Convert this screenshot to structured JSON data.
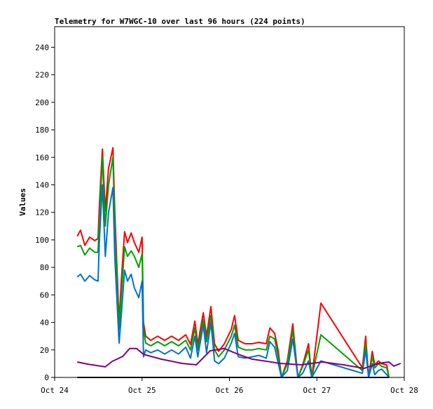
{
  "chart_data": {
    "type": "line",
    "title": "Telemetry for W7WGC-10 over last 96 hours (224 points)",
    "y_label": "Values",
    "xlim": [
      0,
      96
    ],
    "xticks": [
      {
        "value": 0,
        "label": "Oct 24"
      },
      {
        "value": 24,
        "label": "Oct 25"
      },
      {
        "value": 48,
        "label": "Oct 26"
      },
      {
        "value": 72,
        "label": "Oct 27"
      },
      {
        "value": 96,
        "label": "Oct 28"
      }
    ],
    "ylim": [
      0,
      255
    ],
    "yticks": [
      0,
      20,
      40,
      60,
      80,
      100,
      120,
      140,
      160,
      180,
      200,
      220,
      240
    ],
    "grid": false,
    "series": [
      {
        "color": "#ff0000",
        "x": [
          6.2,
          7.1,
          8.3,
          9.6,
          11,
          11.9,
          12.3,
          13.1,
          13.9,
          14.8,
          16,
          16.5,
          17.7,
          18.3,
          19.2,
          20,
          21,
          21.9,
          23.1,
          24,
          24.4,
          25,
          26.4,
          28.3,
          30.2,
          32.1,
          34,
          36,
          37.3,
          38.5,
          39.3,
          40.8,
          41.7,
          42.9,
          43.9,
          45,
          46.6,
          48.5,
          49.4,
          50.4,
          52.3,
          54.2,
          56.1,
          58.1,
          59.1,
          60.4,
          61.4,
          62.3,
          63.9,
          65.4,
          66.8,
          68.1,
          69.7,
          70.6,
          73.1,
          84.5,
          85.4,
          86.2,
          87.2,
          87.9,
          88.9,
          89.8,
          91.2,
          91.8
        ],
        "values": [
          102.6,
          107,
          96,
          102,
          99.5,
          101,
          126,
          166,
          121,
          152,
          167,
          121,
          40,
          70,
          106,
          98,
          105,
          98,
          91,
          102,
          40,
          30,
          27,
          30,
          27,
          30,
          27,
          31,
          24,
          41,
          24,
          47,
          30,
          51.5,
          24.5,
          19,
          24.5,
          35,
          45,
          27,
          24.5,
          24.5,
          25.5,
          24.5,
          36,
          32,
          19,
          0,
          12,
          39,
          0,
          9,
          24.5,
          0,
          54,
          7,
          30,
          0,
          19,
          9,
          12,
          10,
          9,
          0
        ]
      },
      {
        "color": "#00a000",
        "x": [
          6.2,
          7.1,
          8.3,
          9.6,
          11,
          11.9,
          12.3,
          13.1,
          13.9,
          14.8,
          16,
          16.5,
          17.7,
          18.3,
          19.2,
          20,
          21,
          21.9,
          23.1,
          24,
          24.4,
          25,
          26.4,
          28.3,
          30.2,
          32.1,
          34,
          36,
          37.3,
          38.5,
          39.3,
          40.8,
          41.7,
          42.9,
          43.9,
          45,
          46.6,
          48.5,
          49.4,
          50.4,
          52.3,
          54.2,
          56.1,
          58.1,
          59.1,
          60.4,
          61.4,
          62.3,
          63.9,
          65.4,
          66.8,
          68.1,
          69.7,
          70.6,
          73.1,
          84.5,
          85.4,
          86.2,
          87.2,
          87.9,
          88.9,
          89.8,
          91.2,
          91.8
        ],
        "values": [
          95,
          96,
          89,
          94,
          91,
          91,
          115,
          160,
          110,
          140,
          160,
          110,
          35,
          60,
          95,
          88,
          92,
          88,
          80,
          90,
          35,
          25,
          23,
          26,
          23,
          26,
          23,
          27,
          20,
          36,
          20,
          42,
          26,
          45,
          20,
          15,
          20,
          30,
          38,
          22,
          20,
          20,
          21,
          20,
          30,
          28,
          15,
          0,
          10,
          34,
          0,
          8,
          20,
          0,
          31,
          5,
          25,
          0,
          15,
          7,
          10,
          8,
          7,
          0
        ]
      },
      {
        "color": "#0070d0",
        "x": [
          6.2,
          7.1,
          8.3,
          9.6,
          11,
          11.9,
          12.3,
          13.1,
          13.9,
          14.8,
          16,
          16.5,
          17.7,
          18.3,
          19.2,
          20,
          21,
          21.9,
          23.1,
          24,
          24.4,
          25,
          26.4,
          28.3,
          30.2,
          32.1,
          34,
          36,
          37.3,
          38.5,
          39.3,
          40.8,
          41.7,
          42.9,
          43.9,
          45,
          46.6,
          48.5,
          49.4,
          50.4,
          52.3,
          54.2,
          56.1,
          58.1,
          59.1,
          60.4,
          61.4,
          62.3,
          63.9,
          65.4,
          66.8,
          68.1,
          69.7,
          70.6,
          73.1,
          84.5,
          85.4,
          86.2,
          87.2,
          87.9,
          88.9,
          89.8,
          91.2,
          91.8
        ],
        "values": [
          73,
          75,
          70,
          74,
          71,
          70,
          100,
          140,
          88,
          120,
          138,
          88,
          25,
          45,
          78,
          70,
          75,
          65,
          58,
          70,
          15,
          20,
          18,
          20,
          17,
          20,
          17,
          22,
          14,
          30,
          15,
          38,
          18,
          40,
          12,
          10,
          14,
          25,
          32,
          15,
          14,
          15,
          16,
          14,
          26,
          22,
          10,
          0,
          5,
          28,
          0,
          3,
          12,
          0,
          12,
          3,
          20,
          0,
          10,
          2,
          5,
          6,
          2,
          0
        ]
      },
      {
        "color": "#800080",
        "x": [
          6.2,
          9,
          13.9,
          15.8,
          18.7,
          20.6,
          22.5,
          24.4,
          29.2,
          35,
          38.9,
          42.7,
          46.6,
          50.4,
          54.2,
          61.9,
          67.7,
          73.5,
          79.3,
          85,
          88.9,
          91.8,
          93.1,
          95
        ],
        "values": [
          11.2,
          9.7,
          7.7,
          11.7,
          15.3,
          21,
          21,
          16.8,
          13.3,
          10.2,
          9.2,
          19.4,
          21,
          16.8,
          13.3,
          10.2,
          9.2,
          11.2,
          9.2,
          6.6,
          10.2,
          11.2,
          8.2,
          10.2
        ]
      },
      {
        "color": "#000000",
        "x": [
          6.2,
          91.8
        ],
        "values": [
          0,
          0
        ]
      }
    ]
  }
}
